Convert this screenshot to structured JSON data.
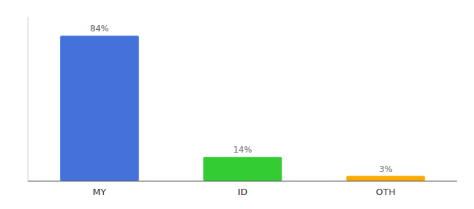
{
  "chart_data": {
    "type": "bar",
    "categories": [
      "MY",
      "ID",
      "OTH"
    ],
    "values": [
      84,
      14,
      3
    ],
    "value_labels": [
      "84%",
      "14%",
      "3%"
    ],
    "colors": [
      "#4472db",
      "#33cc33",
      "#ffaa00"
    ],
    "ylim": [
      0,
      95
    ],
    "grid": false,
    "data_labels": true,
    "tick_labels": "x"
  }
}
